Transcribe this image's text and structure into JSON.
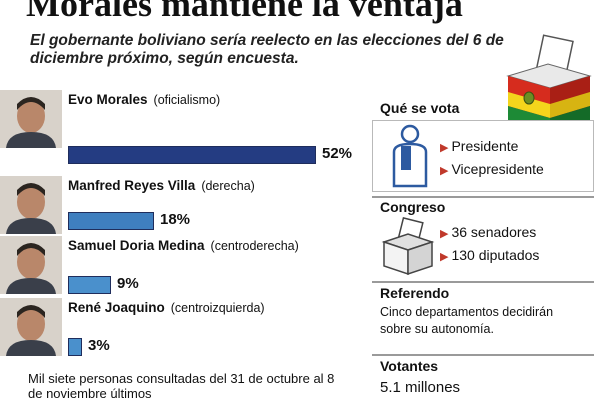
{
  "headline": "Morales mantiene la ventaja",
  "subheadline": "El gobernante boliviano sería reelecto en las elecciones del 6 de diciembre próximo, según encuesta.",
  "chart_data": {
    "type": "bar",
    "orientation": "horizontal",
    "categories": [
      "Evo Morales",
      "Manfred Reyes Villa",
      "Samuel Doria Medina",
      "René Joaquino"
    ],
    "affiliations": [
      "(oficialismo)",
      "(derecha)",
      "(centroderecha)",
      "(centroizquierda)"
    ],
    "values": [
      52,
      18,
      9,
      3
    ],
    "labels": [
      "52%",
      "18%",
      "9%",
      "3%"
    ],
    "colors": [
      "#243c82",
      "#3f7fbf",
      "#4a90cc",
      "#4a90cc"
    ],
    "xlim": [
      0,
      52
    ]
  },
  "footnote": "Mil siete personas consultadas del 31 de octubre al 8 de noviembre últimos",
  "sidebar": {
    "que_se_vota": {
      "title": "Qué se vota",
      "items": [
        "Presidente",
        "Vicepresidente"
      ]
    },
    "congreso": {
      "title": "Congreso",
      "items": [
        "36 senadores",
        "130 diputados"
      ]
    },
    "referendo": {
      "title": "Referendo",
      "text": "Cinco departamentos decidirán sobre su autonomía."
    },
    "votantes": {
      "title": "Votantes",
      "value": "5.1 millones"
    }
  }
}
